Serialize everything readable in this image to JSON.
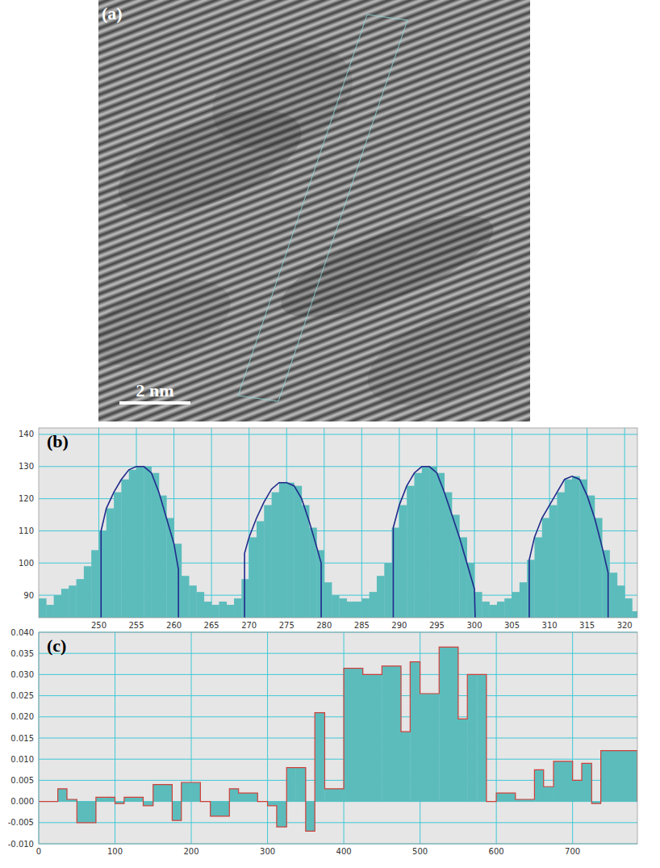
{
  "image": {
    "title": "(a)",
    "scale_bar": "2 nm"
  },
  "chart_data": [
    {
      "type": "histogram",
      "title": "(b)",
      "color": "#5cbcbc",
      "grid": true,
      "bins": [
        242,
        243,
        244,
        245,
        246,
        247,
        248,
        249,
        250,
        251,
        252,
        253,
        254,
        255,
        256,
        257,
        258,
        259,
        260,
        261,
        262,
        263,
        264,
        265,
        266,
        267,
        268,
        269,
        270,
        271,
        272,
        273,
        274,
        275,
        276,
        277,
        278,
        279,
        280,
        281,
        282,
        283,
        284,
        285,
        286,
        287,
        288,
        289,
        290,
        291,
        292,
        293,
        294,
        295,
        296,
        297,
        298,
        299,
        300,
        301,
        302,
        303,
        304,
        305,
        306,
        307,
        308,
        309,
        310,
        311,
        312,
        313,
        314,
        315,
        316,
        317,
        318,
        319,
        320,
        321,
        322
      ],
      "values": [
        89,
        87,
        90,
        92,
        93,
        95,
        99,
        104,
        110,
        117,
        122,
        126,
        129,
        130,
        130,
        128,
        121,
        114,
        106,
        96,
        93,
        91,
        88,
        87,
        88,
        87,
        89,
        95,
        108,
        113,
        118,
        122,
        125,
        125,
        124,
        118,
        111,
        104,
        94,
        90,
        89,
        88,
        88,
        89,
        91,
        96,
        100,
        111,
        118,
        124,
        128,
        130,
        130,
        128,
        122,
        115,
        108,
        100,
        91,
        88,
        87,
        88,
        89,
        91,
        94,
        101,
        108,
        114,
        118,
        122,
        126,
        127,
        126,
        121,
        114,
        104,
        97,
        93,
        89,
        85
      ],
      "xlim": [
        242,
        321.7
      ],
      "ylim": [
        83,
        142
      ],
      "xticks": [
        250,
        255,
        260,
        265,
        270,
        275,
        280,
        285,
        290,
        295,
        300,
        305,
        310,
        315,
        320
      ],
      "yticks": [
        90,
        100,
        110,
        120,
        130,
        140
      ],
      "series": [
        {
          "type": "line",
          "color": "#1f2a8a",
          "x": [
            250.3,
            250.3,
            251,
            252,
            253,
            254,
            255,
            256,
            257,
            258,
            259,
            260,
            260.6,
            260.6
          ],
          "values": [
            83,
            110,
            117,
            122,
            126,
            129,
            130,
            130,
            128,
            122,
            114,
            106,
            98,
            83
          ]
        },
        {
          "type": "line",
          "color": "#1f2a8a",
          "x": [
            269.4,
            269.4,
            270,
            271,
            272,
            273,
            274,
            275,
            276,
            277,
            278,
            279,
            279.6,
            279.6
          ],
          "values": [
            83,
            103,
            108,
            114,
            119,
            123,
            125,
            125,
            124,
            120,
            113,
            105,
            100,
            83
          ]
        },
        {
          "type": "line",
          "color": "#1f2a8a",
          "x": [
            289.2,
            289.2,
            290,
            291,
            292,
            293,
            294,
            295,
            296,
            297,
            298,
            299,
            300,
            300.1
          ],
          "values": [
            83,
            111,
            118,
            124,
            128,
            130,
            130,
            128,
            122,
            115,
            108,
            100,
            92,
            83
          ]
        },
        {
          "type": "line",
          "color": "#1f2a8a",
          "x": [
            307.3,
            307.3,
            308,
            309,
            310,
            311,
            312,
            313,
            314,
            315,
            316,
            317,
            317.8,
            317.8
          ],
          "values": [
            83,
            101,
            108,
            114,
            118,
            122,
            126,
            127,
            126,
            121,
            114,
            105,
            97,
            83
          ]
        }
      ]
    },
    {
      "type": "histogram",
      "title": "(c)",
      "color": "#5cbcbc",
      "grid": true,
      "line_style": "step",
      "bins": [
        0,
        25,
        37,
        50,
        75,
        87,
        100,
        112,
        137,
        150,
        175,
        187,
        200,
        212,
        225,
        250,
        262,
        275,
        287,
        300,
        312,
        325,
        337,
        350,
        362,
        375,
        400,
        425,
        450,
        475,
        487,
        500,
        512,
        525,
        550,
        562,
        575,
        587,
        600,
        625,
        637,
        650,
        662,
        675,
        700,
        712,
        725,
        737,
        750,
        785
      ],
      "values": [
        0,
        0.003,
        0.0005,
        -0.005,
        0.001,
        0.001,
        -0.0005,
        0.001,
        -0.001,
        0.004,
        -0.0045,
        0.0045,
        0.0045,
        0,
        -0.0035,
        0.003,
        0.002,
        0.002,
        0,
        -0.001,
        -0.006,
        0.008,
        0.008,
        -0.007,
        0.021,
        0.003,
        0.0315,
        0.03,
        0.032,
        0.0165,
        0.033,
        0.0255,
        0.0255,
        0.0365,
        0.0195,
        0.03,
        0.03,
        0,
        0.002,
        0.0005,
        0.0005,
        0.0075,
        0.0035,
        0.0095,
        0.005,
        0.009,
        -0.0005,
        0.012,
        0.012
      ],
      "xlim": [
        0,
        785
      ],
      "ylim": [
        -0.01,
        0.04
      ],
      "xticks": [
        0,
        100,
        200,
        300,
        400,
        500,
        600,
        700
      ],
      "yticks": [
        {
          "value": -0.01,
          "label": "-0.010"
        },
        {
          "value": -0.005,
          "label": "-0.005"
        },
        {
          "value": 0,
          "label": "0.000"
        },
        {
          "value": 0.005,
          "label": "0.005"
        },
        {
          "value": 0.01,
          "label": "0.010"
        },
        {
          "value": 0.015,
          "label": "0.015"
        },
        {
          "value": 0.02,
          "label": "0.020"
        },
        {
          "value": 0.025,
          "label": "0.025"
        },
        {
          "value": 0.03,
          "label": "0.030"
        },
        {
          "value": 0.035,
          "label": "0.035"
        },
        {
          "value": 0.04,
          "label": "0.040"
        }
      ]
    }
  ]
}
